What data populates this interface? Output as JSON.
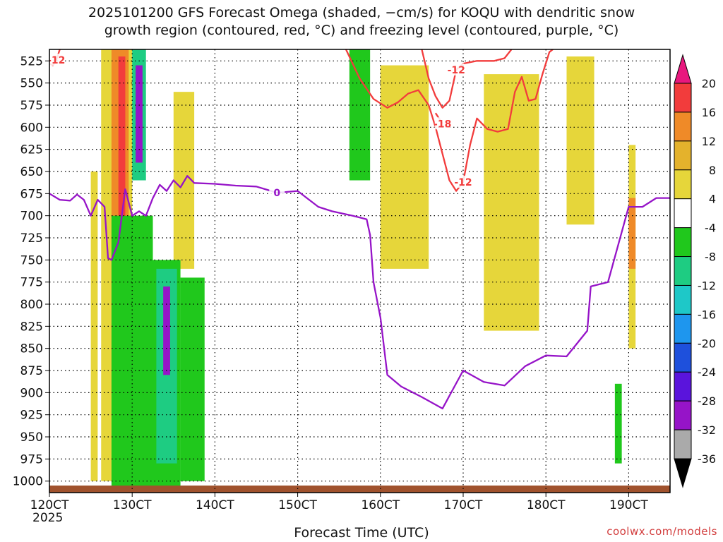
{
  "title_line1": "2025101200 GFS Forecast Omega (shaded, −cm/s) for KOQU with dendritic snow",
  "title_line2": "growth region (contoured, red, °C) and freezing level (contoured, purple, °C)",
  "xlabel": "Forecast Time (UTC)",
  "credit": "coolwx.com/models",
  "chart_data": {
    "type": "heatmap",
    "title": "2025101200 GFS Forecast Omega (shaded, −cm/s) for KOQU with dendritic snow growth region (contoured, red, °C) and freezing level (contoured, purple, °C)",
    "xlabel": "Forecast Time (UTC)",
    "ylabel": "",
    "y_inverted": true,
    "xlim": [
      "2025-10-12T00Z",
      "2025-10-19T12Z"
    ],
    "ylim": [
      1013,
      512
    ],
    "x_ticks": [
      "2025-10-12T00Z",
      "2025-10-13T00Z",
      "2025-10-14T00Z",
      "2025-10-15T00Z",
      "2025-10-16T00Z",
      "2025-10-17T00Z",
      "2025-10-18T00Z",
      "2025-10-19T00Z"
    ],
    "x_tick_labels": [
      "120CT",
      "130CT",
      "140CT",
      "150CT",
      "160CT",
      "170CT",
      "180CT",
      "190CT"
    ],
    "x_tick_sublabel": "2025",
    "y_ticks": [
      525,
      550,
      575,
      600,
      625,
      650,
      675,
      700,
      725,
      750,
      775,
      800,
      825,
      850,
      875,
      900,
      925,
      950,
      975,
      1000
    ],
    "grid": true,
    "colorbar": {
      "label_values": [
        20,
        16,
        12,
        8,
        4,
        -4,
        -8,
        -12,
        -16,
        -20,
        -24,
        -28,
        -32,
        -36
      ],
      "bins": [
        {
          "range": "20+",
          "color": "#e8187e"
        },
        {
          "range": "16–20",
          "color": "#f23c3c"
        },
        {
          "range": "12–16",
          "color": "#ef8a28"
        },
        {
          "range": "8–12",
          "color": "#e4b22c"
        },
        {
          "range": "4–8",
          "color": "#e6d63a"
        },
        {
          "range": "-4–4",
          "color": "#ffffff"
        },
        {
          "range": "-8–-4",
          "color": "#20c81c"
        },
        {
          "range": "-12–-8",
          "color": "#1ecc82"
        },
        {
          "range": "-16–-12",
          "color": "#1ec8c8"
        },
        {
          "range": "-20–-16",
          "color": "#1e96ee"
        },
        {
          "range": "-24–-20",
          "color": "#1e50dc"
        },
        {
          "range": "-28–-24",
          "color": "#5a14dc"
        },
        {
          "range": "-32–-28",
          "color": "#9614c8"
        },
        {
          "range": "-36–-32",
          "color": "#aaaaaa"
        },
        {
          "range": "< -36",
          "color": "#000000"
        }
      ]
    },
    "shaded_regions": [
      {
        "t": [
          "2025-10-12T12Z",
          "2025-10-12T14Z"
        ],
        "p": [
          650,
          1000
        ],
        "value": 6
      },
      {
        "t": [
          "2025-10-12T15Z",
          "2025-10-13T00Z"
        ],
        "p": [
          512,
          1000
        ],
        "value": 6
      },
      {
        "t": [
          "2025-10-12T18Z",
          "2025-10-12T23Z"
        ],
        "p": [
          512,
          900
        ],
        "value": 14
      },
      {
        "t": [
          "2025-10-12T20Z",
          "2025-10-12T22Z"
        ],
        "p": [
          520,
          780
        ],
        "value": 18
      },
      {
        "t": [
          "2025-10-13T12Z",
          "2025-10-13T18Z"
        ],
        "p": [
          560,
          760
        ],
        "value": 6
      },
      {
        "t": [
          "2025-10-12T18Z",
          "2025-10-13T06Z"
        ],
        "p": [
          700,
          1010
        ],
        "value": -6
      },
      {
        "t": [
          "2025-10-13T06Z",
          "2025-10-13T14Z"
        ],
        "p": [
          750,
          1010
        ],
        "value": -7
      },
      {
        "t": [
          "2025-10-13T14Z",
          "2025-10-13T21Z"
        ],
        "p": [
          770,
          1000
        ],
        "value": -6
      },
      {
        "t": [
          "2025-10-13T00Z",
          "2025-10-13T04Z"
        ],
        "p": [
          512,
          660
        ],
        "value": -12
      },
      {
        "t": [
          "2025-10-13T01Z",
          "2025-10-13T03Z"
        ],
        "p": [
          530,
          640
        ],
        "value": -29
      },
      {
        "t": [
          "2025-10-13T07Z",
          "2025-10-13T13Z"
        ],
        "p": [
          760,
          980
        ],
        "value": -12
      },
      {
        "t": [
          "2025-10-13T09Z",
          "2025-10-13T11Z"
        ],
        "p": [
          780,
          880
        ],
        "value": -30
      },
      {
        "t": [
          "2025-10-15T15Z",
          "2025-10-15T21Z"
        ],
        "p": [
          512,
          660
        ],
        "value": -6
      },
      {
        "t": [
          "2025-10-16T00Z",
          "2025-10-16T14Z"
        ],
        "p": [
          530,
          760
        ],
        "value": 6
      },
      {
        "t": [
          "2025-10-17T06Z",
          "2025-10-17T22Z"
        ],
        "p": [
          540,
          830
        ],
        "value": 6
      },
      {
        "t": [
          "2025-10-18T06Z",
          "2025-10-18T14Z"
        ],
        "p": [
          520,
          710
        ],
        "value": 6
      },
      {
        "t": [
          "2025-10-19T00Z",
          "2025-10-19T02Z"
        ],
        "p": [
          620,
          850
        ],
        "value": 6
      },
      {
        "t": [
          "2025-10-19T00Z",
          "2025-10-19T02Z"
        ],
        "p": [
          680,
          760
        ],
        "value": 13
      },
      {
        "t": [
          "2025-10-18T20Z",
          "2025-10-18T22Z"
        ],
        "p": [
          890,
          980
        ],
        "value": -8
      }
    ],
    "series": [
      {
        "name": "-12",
        "color": "#f23c3c",
        "contour": "red",
        "segments": [
          [
            [
              "2025-10-15T14Z",
              512
            ],
            [
              "2025-10-15T18Z",
              545
            ],
            [
              "2025-10-15T22Z",
              568
            ],
            [
              "2025-10-16T02Z",
              578
            ],
            [
              "2025-10-16T05Z",
              572
            ],
            [
              "2025-10-16T08Z",
              562
            ],
            [
              "2025-10-16T11Z",
              558
            ],
            [
              "2025-10-16T14Z",
              575
            ],
            [
              "2025-10-16T16Z",
              600
            ],
            [
              "2025-10-16T18Z",
              630
            ],
            [
              "2025-10-16T20Z",
              660
            ],
            [
              "2025-10-16T22Z",
              672
            ],
            [
              "2025-10-17T00Z",
              662
            ],
            [
              "2025-10-17T02Z",
              620
            ],
            [
              "2025-10-17T04Z",
              590
            ],
            [
              "2025-10-17T07Z",
              602
            ],
            [
              "2025-10-17T10Z",
              605
            ],
            [
              "2025-10-17T13Z",
              602
            ],
            [
              "2025-10-17T15Z",
              560
            ],
            [
              "2025-10-17T17Z",
              543
            ],
            [
              "2025-10-17T19Z",
              570
            ],
            [
              "2025-10-17T21Z",
              568
            ],
            [
              "2025-10-17T23Z",
              540
            ],
            [
              "2025-10-18T01Z",
              515
            ],
            [
              "2025-10-18T02Z",
              512
            ]
          ],
          [
            [
              "2025-10-12T00Z",
              528
            ],
            [
              "2025-10-12T01Z",
              530
            ],
            [
              "2025-10-12T02Z",
              524
            ],
            [
              "2025-10-12T03Z",
              512
            ]
          ],
          [
            [
              "2025-10-16T12Z",
              512
            ],
            [
              "2025-10-16T14Z",
              545
            ],
            [
              "2025-10-16T16Z",
              565
            ],
            [
              "2025-10-16T18Z",
              578
            ],
            [
              "2025-10-16T20Z",
              570
            ],
            [
              "2025-10-16T22Z",
              535
            ],
            [
              "2025-10-17T00Z",
              528
            ],
            [
              "2025-10-17T04Z",
              525
            ],
            [
              "2025-10-17T09Z",
              525
            ],
            [
              "2025-10-17T12Z",
              522
            ],
            [
              "2025-10-17T14Z",
              512
            ]
          ]
        ]
      },
      {
        "name": "-18",
        "color": "#f23c3c",
        "contour": "red",
        "segments": [
          [
            [
              "2025-10-16T16Z",
              584
            ],
            [
              "2025-10-16T18Z",
              596
            ]
          ]
        ]
      },
      {
        "name": "0",
        "color": "#9614c8",
        "contour": "purple",
        "segments": [
          [
            [
              "2025-10-12T00Z",
              675
            ],
            [
              "2025-10-12T03Z",
              682
            ],
            [
              "2025-10-12T06Z",
              683
            ],
            [
              "2025-10-12T08Z",
              676
            ],
            [
              "2025-10-12T10Z",
              682
            ],
            [
              "2025-10-12T12Z",
              700
            ],
            [
              "2025-10-12T14Z",
              682
            ],
            [
              "2025-10-12T16Z",
              690
            ],
            [
              "2025-10-12T17Z",
              748
            ],
            [
              "2025-10-12T18Z",
              750
            ],
            [
              "2025-10-12T20Z",
              730
            ],
            [
              "2025-10-12T22Z",
              670
            ],
            [
              "2025-10-13T00Z",
              700
            ],
            [
              "2025-10-13T02Z",
              695
            ],
            [
              "2025-10-13T04Z",
              700
            ],
            [
              "2025-10-13T06Z",
              680
            ],
            [
              "2025-10-13T08Z",
              665
            ],
            [
              "2025-10-13T10Z",
              672
            ],
            [
              "2025-10-13T12Z",
              660
            ],
            [
              "2025-10-13T14Z",
              668
            ],
            [
              "2025-10-13T16Z",
              655
            ],
            [
              "2025-10-13T18Z",
              663
            ],
            [
              "2025-10-14T00Z",
              664
            ],
            [
              "2025-10-14T06Z",
              666
            ],
            [
              "2025-10-14T12Z",
              667
            ],
            [
              "2025-10-14T18Z",
              674
            ],
            [
              "2025-10-15T00Z",
              672
            ],
            [
              "2025-10-15T06Z",
              690
            ],
            [
              "2025-10-15T10Z",
              695
            ],
            [
              "2025-10-15T16Z",
              700
            ],
            [
              "2025-10-15T20Z",
              704
            ],
            [
              "2025-10-15T21Z",
              722
            ],
            [
              "2025-10-15T22Z",
              775
            ],
            [
              "2025-10-16T00Z",
              815
            ],
            [
              "2025-10-16T02Z",
              880
            ],
            [
              "2025-10-16T06Z",
              893
            ],
            [
              "2025-10-16T12Z",
              905
            ],
            [
              "2025-10-16T18Z",
              918
            ],
            [
              "2025-10-17T00Z",
              875
            ],
            [
              "2025-10-17T06Z",
              888
            ],
            [
              "2025-10-17T12Z",
              892
            ],
            [
              "2025-10-17T18Z",
              870
            ],
            [
              "2025-10-18T00Z",
              858
            ],
            [
              "2025-10-18T06Z",
              859
            ],
            [
              "2025-10-18T12Z",
              830
            ],
            [
              "2025-10-18T13Z",
              780
            ],
            [
              "2025-10-18T18Z",
              775
            ],
            [
              "2025-10-19T00Z",
              690
            ],
            [
              "2025-10-19T04Z",
              690
            ],
            [
              "2025-10-19T08Z",
              680
            ],
            [
              "2025-10-19T12Z",
              680
            ]
          ]
        ]
      }
    ]
  }
}
